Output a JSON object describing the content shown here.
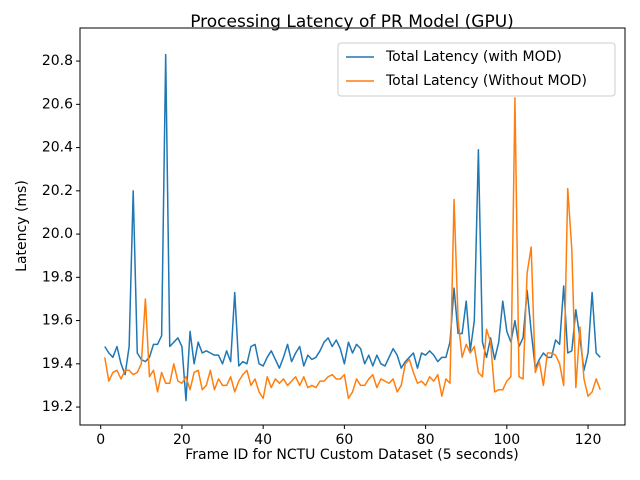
{
  "chart_data": {
    "type": "line",
    "title": "Processing Latency of PR Model (GPU)",
    "x_label": "Frame ID for NCTU Custom Dataset (5 seconds)",
    "y_label": "Latency (ms)",
    "x": [
      1,
      2,
      3,
      4,
      5,
      6,
      7,
      8,
      9,
      10,
      11,
      12,
      13,
      14,
      15,
      16,
      17,
      18,
      19,
      20,
      21,
      22,
      23,
      24,
      25,
      26,
      27,
      28,
      29,
      30,
      31,
      32,
      33,
      34,
      35,
      36,
      37,
      38,
      39,
      40,
      41,
      42,
      43,
      44,
      45,
      46,
      47,
      48,
      49,
      50,
      51,
      52,
      53,
      54,
      55,
      56,
      57,
      58,
      59,
      60,
      61,
      62,
      63,
      64,
      65,
      66,
      67,
      68,
      69,
      70,
      71,
      72,
      73,
      74,
      75,
      76,
      77,
      78,
      79,
      80,
      81,
      82,
      83,
      84,
      85,
      86,
      87,
      88,
      89,
      90,
      91,
      92,
      93,
      94,
      95,
      96,
      97,
      98,
      99,
      100,
      101,
      102,
      103,
      104,
      105,
      106,
      107,
      108,
      109,
      110,
      111,
      112,
      113,
      114,
      115,
      116,
      117,
      118,
      119,
      120,
      121,
      122,
      123
    ],
    "series": [
      {
        "name": "Total Latency (with MOD)",
        "color": "#1f77b4",
        "values": [
          19.48,
          19.45,
          19.43,
          19.48,
          19.4,
          19.35,
          19.48,
          20.2,
          19.45,
          19.42,
          19.41,
          19.43,
          19.49,
          19.49,
          19.53,
          20.83,
          19.48,
          19.5,
          19.52,
          19.48,
          19.23,
          19.55,
          19.4,
          19.5,
          19.45,
          19.46,
          19.45,
          19.44,
          19.44,
          19.4,
          19.46,
          19.41,
          19.73,
          19.39,
          19.41,
          19.4,
          19.48,
          19.49,
          19.4,
          19.39,
          19.43,
          19.46,
          19.42,
          19.38,
          19.43,
          19.49,
          19.41,
          19.45,
          19.48,
          19.39,
          19.44,
          19.42,
          19.43,
          19.46,
          19.5,
          19.52,
          19.48,
          19.51,
          19.47,
          19.4,
          19.5,
          19.45,
          19.49,
          19.47,
          19.4,
          19.44,
          19.39,
          19.44,
          19.4,
          19.39,
          19.43,
          19.47,
          19.44,
          19.38,
          19.41,
          19.43,
          19.45,
          19.38,
          19.45,
          19.44,
          19.46,
          19.44,
          19.41,
          19.43,
          19.43,
          19.5,
          19.75,
          19.54,
          19.54,
          19.69,
          19.46,
          19.6,
          20.39,
          19.5,
          19.43,
          19.52,
          19.42,
          19.5,
          19.69,
          19.55,
          19.5,
          19.6,
          19.48,
          19.52,
          19.74,
          19.55,
          19.38,
          19.42,
          19.45,
          19.43,
          19.43,
          19.51,
          19.49,
          19.76,
          19.45,
          19.46,
          19.65,
          19.52,
          19.37,
          19.45,
          19.73,
          19.45,
          19.43
        ]
      },
      {
        "name": "Total Latency (Without MOD)",
        "color": "#ff7f0e",
        "values": [
          19.43,
          19.32,
          19.36,
          19.37,
          19.33,
          19.37,
          19.37,
          19.35,
          19.36,
          19.4,
          19.7,
          19.34,
          19.37,
          19.27,
          19.36,
          19.31,
          19.31,
          19.4,
          19.32,
          19.31,
          19.34,
          19.28,
          19.36,
          19.37,
          19.28,
          19.3,
          19.37,
          19.28,
          19.33,
          19.3,
          19.3,
          19.34,
          19.27,
          19.32,
          19.35,
          19.37,
          19.3,
          19.33,
          19.27,
          19.24,
          19.34,
          19.29,
          19.33,
          19.31,
          19.33,
          19.3,
          19.32,
          19.34,
          19.3,
          19.34,
          19.29,
          19.3,
          19.29,
          19.32,
          19.32,
          19.34,
          19.35,
          19.33,
          19.33,
          19.35,
          19.24,
          19.27,
          19.33,
          19.3,
          19.3,
          19.33,
          19.35,
          19.29,
          19.33,
          19.32,
          19.31,
          19.33,
          19.27,
          19.3,
          19.4,
          19.42,
          19.36,
          19.31,
          19.32,
          19.3,
          19.34,
          19.32,
          19.35,
          19.25,
          19.33,
          19.31,
          20.16,
          19.6,
          19.43,
          19.49,
          19.45,
          19.48,
          19.36,
          19.34,
          19.56,
          19.5,
          19.27,
          19.28,
          19.28,
          19.32,
          19.34,
          20.63,
          19.34,
          19.33,
          19.82,
          19.94,
          19.36,
          19.41,
          19.3,
          19.45,
          19.45,
          19.44,
          19.4,
          19.3,
          20.21,
          19.93,
          19.29,
          19.57,
          19.33,
          19.25,
          19.27,
          19.33,
          19.28
        ]
      }
    ],
    "xlim": [
      -5.1,
      129.1
    ],
    "ylim": [
      19.117,
      20.953
    ],
    "xticks": [
      0,
      20,
      40,
      60,
      80,
      100,
      120
    ],
    "yticks": [
      19.2,
      19.4,
      19.6,
      19.8,
      {
        "value": 20.0,
        "label": "20.0"
      },
      20.2,
      20.4,
      20.6,
      20.8
    ],
    "legend": "upper right"
  }
}
